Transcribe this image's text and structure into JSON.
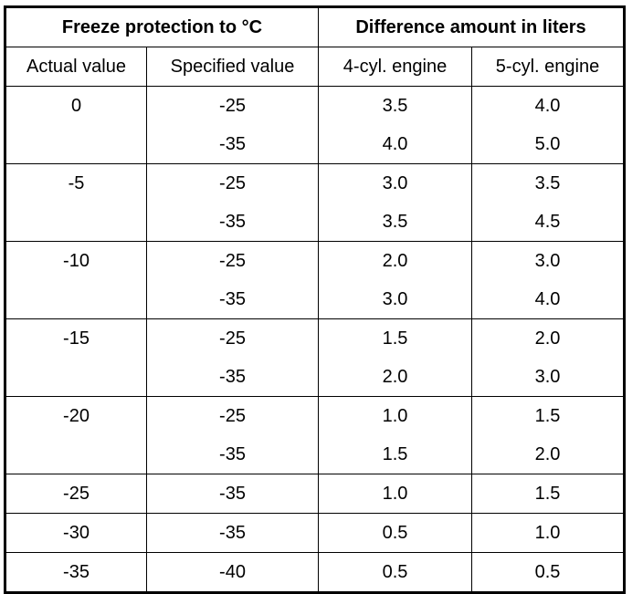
{
  "table": {
    "title_left": "Freeze protection to °C",
    "title_right": "Difference amount in liters",
    "columns": [
      "Actual value",
      "Specified value",
      "4-cyl. engine",
      "5-cyl. engine"
    ],
    "groups": [
      {
        "actual": "0",
        "rows": [
          [
            "-25",
            "3.5",
            "4.0"
          ],
          [
            "-35",
            "4.0",
            "5.0"
          ]
        ]
      },
      {
        "actual": "-5",
        "rows": [
          [
            "-25",
            "3.0",
            "3.5"
          ],
          [
            "-35",
            "3.5",
            "4.5"
          ]
        ]
      },
      {
        "actual": "-10",
        "rows": [
          [
            "-25",
            "2.0",
            "3.0"
          ],
          [
            "-35",
            "3.0",
            "4.0"
          ]
        ]
      },
      {
        "actual": "-15",
        "rows": [
          [
            "-25",
            "1.5",
            "2.0"
          ],
          [
            "-35",
            "2.0",
            "3.0"
          ]
        ]
      },
      {
        "actual": "-20",
        "rows": [
          [
            "-25",
            "1.0",
            "1.5"
          ],
          [
            "-35",
            "1.5",
            "2.0"
          ]
        ]
      },
      {
        "actual": "-25",
        "rows": [
          [
            "-35",
            "1.0",
            "1.5"
          ]
        ]
      },
      {
        "actual": "-30",
        "rows": [
          [
            "-35",
            "0.5",
            "1.0"
          ]
        ]
      },
      {
        "actual": "-35",
        "rows": [
          [
            "-40",
            "0.5",
            "0.5"
          ]
        ]
      }
    ]
  }
}
